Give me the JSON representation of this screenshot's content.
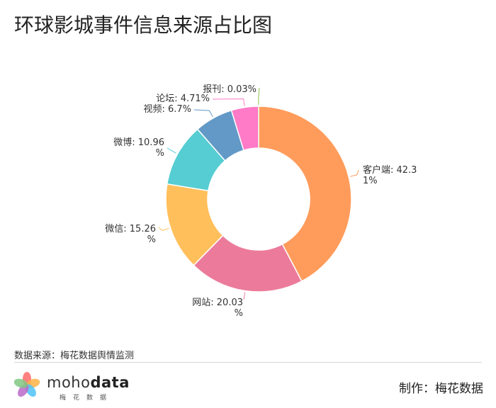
{
  "title": "环球影城事件信息来源占比图",
  "chart_data": {
    "type": "pie",
    "style": "donut",
    "slices": [
      {
        "name": "客户端",
        "value": 42.31,
        "label_lines": [
          "客户端: 42.3",
          "1%"
        ],
        "color": "#FF9C5B",
        "side": "right"
      },
      {
        "name": "网站",
        "value": 20.03,
        "label_lines": [
          "网站: 20.03",
          "%"
        ],
        "color": "#EC7B9B",
        "side": "left"
      },
      {
        "name": "微信",
        "value": 15.26,
        "label_lines": [
          "微信: 15.26",
          "%"
        ],
        "color": "#FFBF5B",
        "side": "left"
      },
      {
        "name": "微博",
        "value": 10.96,
        "label_lines": [
          "微博: 10.96",
          "%"
        ],
        "color": "#56CDD2",
        "side": "left"
      },
      {
        "name": "视频",
        "value": 6.7,
        "label_lines": [
          "视频: 6.7%"
        ],
        "color": "#6399C6",
        "side": "left"
      },
      {
        "name": "论坛",
        "value": 4.71,
        "label_lines": [
          "论坛: 4.71%"
        ],
        "color": "#FF7AC7",
        "side": "left"
      },
      {
        "name": "报刊",
        "value": 0.03,
        "label_lines": [
          "报刊: 0.03%"
        ],
        "color": "#8BC34A",
        "side": "left"
      }
    ]
  },
  "footer": {
    "source": "数据来源：梅花数据舆情监测",
    "logo_text_regular": "moho",
    "logo_text_bold": "data",
    "logo_subtitle": "梅花数据",
    "credit": "制作：梅花数据"
  },
  "colors": {
    "logo_petals": [
      "#FF6B6B",
      "#FFB347",
      "#4FC3F7",
      "#BA68C8",
      "#81C784"
    ]
  }
}
